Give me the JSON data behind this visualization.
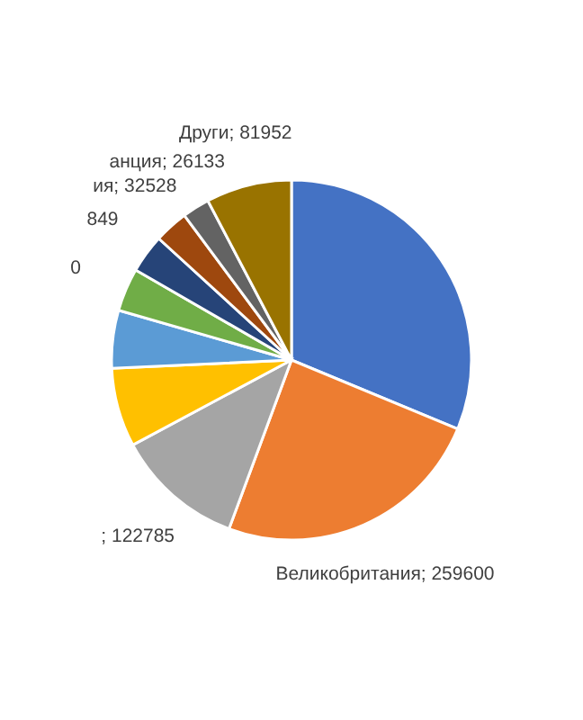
{
  "chart_data": {
    "type": "pie",
    "categories": [
      null,
      null,
      null,
      null,
      null,
      null,
      null,
      null,
      null,
      null
    ],
    "values": [
      332800,
      259600,
      122785,
      75500,
      55200,
      41300,
      36849,
      32528,
      26133,
      81952
    ],
    "colors": [
      "#4472c4",
      "#ed7d31",
      "#a5a5a5",
      "#ffc000",
      "#5b9bd5",
      "#70ad47",
      "#264478",
      "#9e480e",
      "#636363",
      "#997300"
    ],
    "value_labels": [
      null,
      "Великобритания; 259600",
      "; 122785",
      null,
      null,
      null,
      null,
      "ия; 32528",
      "анция; 26133",
      "Други; 81952"
    ],
    "annotations": [
      "849",
      "0"
    ]
  }
}
